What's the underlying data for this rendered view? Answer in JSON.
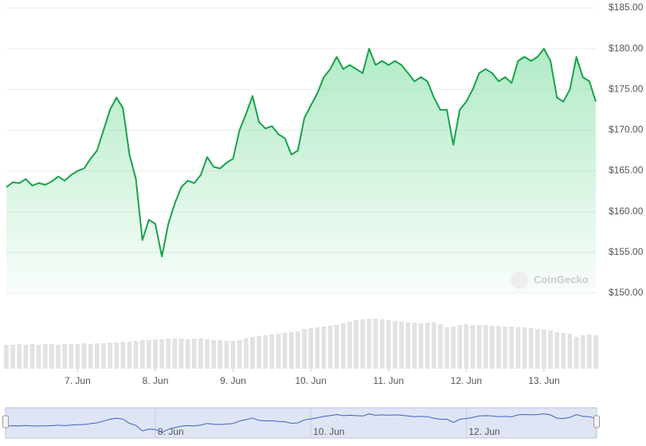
{
  "chart_data": {
    "type": "line",
    "series": [
      {
        "name": "Price",
        "color": "#16a34a",
        "values": [
          163.0,
          163.6,
          163.5,
          164.0,
          163.2,
          163.5,
          163.3,
          163.7,
          164.3,
          163.8,
          164.5,
          165.0,
          165.3,
          166.5,
          167.5,
          170.0,
          172.5,
          174.0,
          172.7,
          167.0,
          164.0,
          156.5,
          159.0,
          158.5,
          154.5,
          158.5,
          161.0,
          163.0,
          163.8,
          163.5,
          164.5,
          166.7,
          165.5,
          165.3,
          166.0,
          166.5,
          170.0,
          172.0,
          174.2,
          171.0,
          170.2,
          170.5,
          169.5,
          169.0,
          167.0,
          167.5,
          171.5,
          173.0,
          174.5,
          176.5,
          177.5,
          179.0,
          177.5,
          178.0,
          177.5,
          177.0,
          180.0,
          178.0,
          178.5,
          178.0,
          178.5,
          178.0,
          177.0,
          176.0,
          176.5,
          176.0,
          174.0,
          172.5,
          172.5,
          168.2,
          172.5,
          173.5,
          175.0,
          177.0,
          177.5,
          177.0,
          176.0,
          176.5,
          175.8,
          178.5,
          179.0,
          178.5,
          179.0,
          180.0,
          178.5,
          174.0,
          173.5,
          175.0,
          179.0,
          176.5,
          176.0,
          173.5
        ]
      }
    ],
    "volume": {
      "color": "#e2e2e2",
      "values": [
        30,
        30,
        31,
        30,
        31,
        30,
        31,
        31,
        30,
        31,
        31,
        31,
        32,
        31,
        32,
        32,
        33,
        33,
        34,
        34,
        35,
        36,
        36,
        37,
        37,
        38,
        38,
        38,
        37,
        38,
        38,
        37,
        36,
        36,
        35,
        35,
        36,
        38,
        40,
        41,
        42,
        43,
        44,
        45,
        46,
        47,
        50,
        51,
        52,
        53,
        54,
        55,
        57,
        59,
        61,
        62,
        63,
        63,
        62,
        61,
        60,
        59,
        58,
        58,
        57,
        58,
        58,
        56,
        52,
        53,
        55,
        56,
        55,
        55,
        55,
        54,
        54,
        53,
        53,
        52,
        52,
        51,
        50,
        49,
        48,
        46,
        45,
        44,
        40,
        42,
        43,
        42
      ]
    },
    "xlim": [
      0,
      91
    ],
    "xticks": [
      {
        "value": 11,
        "label": "7. Jun"
      },
      {
        "value": 23,
        "label": "8. Jun"
      },
      {
        "value": 35,
        "label": "9. Jun"
      },
      {
        "value": 47,
        "label": "10. Jun"
      },
      {
        "value": 59,
        "label": "11. Jun"
      },
      {
        "value": 71,
        "label": "12. Jun"
      },
      {
        "value": 83,
        "label": "13. Jun"
      }
    ],
    "ylim": [
      150,
      185
    ],
    "yticks": [
      {
        "value": 150,
        "label": "$150.00"
      },
      {
        "value": 155,
        "label": "$155.00"
      },
      {
        "value": 160,
        "label": "$160.00"
      },
      {
        "value": 165,
        "label": "$165.00"
      },
      {
        "value": 170,
        "label": "$170.00"
      },
      {
        "value": 175,
        "label": "$175.00"
      },
      {
        "value": 180,
        "label": "$180.00"
      },
      {
        "value": 185,
        "label": "$185.00"
      }
    ],
    "navigator_xticks": [
      {
        "value": 23,
        "label": "8. Jun"
      },
      {
        "value": 47,
        "label": "10. Jun"
      },
      {
        "value": 71,
        "label": "12. Jun"
      }
    ],
    "watermark": "CoinGecko",
    "grid": true
  }
}
